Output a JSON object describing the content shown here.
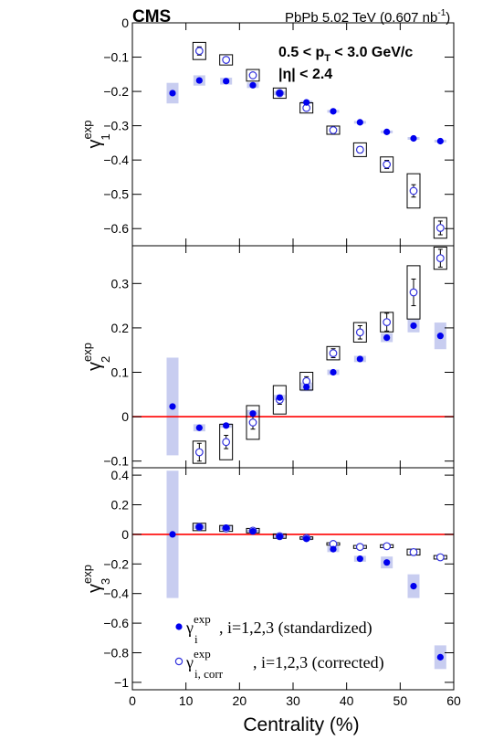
{
  "header": {
    "experiment": "CMS",
    "dataset_prefix": "PbPb 5.02 TeV (0.607 nb",
    "dataset_sup": "-1",
    "dataset_suffix": ")"
  },
  "cuts": {
    "pt_prefix": "0.5 < p",
    "pt_sub": "T",
    "pt_suffix": " < 3.0 GeV/c",
    "eta": "|η| < 2.4"
  },
  "legend": {
    "standardized_sym": "γ",
    "standardized_sup": "exp",
    "standardized_sub": "i",
    "standardized_text": ", i=1,2,3 (standardized)",
    "corrected_sym": "γ",
    "corrected_sup": "exp",
    "corrected_sub": "i, corr",
    "corrected_text": ", i=1,2,3 (corrected)"
  },
  "colors": {
    "standardized_marker": "#0000ee",
    "syst_band": "#c8cdf0",
    "corrected_marker": "#3232dd",
    "zero_line": "#ff0000"
  },
  "chart_data": {
    "type": "scatter",
    "xlabel": "Centrality (%)",
    "xlim": [
      0,
      60
    ],
    "x_ticks": [
      "0",
      "10",
      "20",
      "30",
      "40",
      "50",
      "60"
    ],
    "x": [
      7.5,
      12.5,
      17.5,
      22.5,
      27.5,
      32.5,
      37.5,
      42.5,
      47.5,
      52.5,
      57.5
    ],
    "panels": [
      {
        "ylabel_sym": "γ",
        "ylabel_sup": "exp",
        "ylabel_sub": "1",
        "ylim": [
          -0.65,
          0.0
        ],
        "y_ticks": [
          0,
          -0.1,
          -0.2,
          -0.3,
          -0.4,
          -0.5,
          -0.6
        ],
        "y_tick_labels": [
          "0",
          "−0.1",
          "−0.2",
          "−0.3",
          "−0.4",
          "−0.5",
          "−0.6"
        ],
        "zero_line": false,
        "series": [
          {
            "name": "standardized",
            "x": [
              7.5,
              12.5,
              17.5,
              22.5,
              27.5,
              32.5,
              37.5,
              42.5,
              47.5,
              52.5,
              57.5
            ],
            "values": [
              -0.205,
              -0.168,
              -0.17,
              -0.182,
              -0.205,
              -0.232,
              -0.258,
              -0.29,
              -0.318,
              -0.337,
              -0.345
            ],
            "syst": [
              0.03,
              0.015,
              0.01,
              0.008,
              0.006,
              0.005,
              0.004,
              0.004,
              0.004,
              0.004,
              0.004
            ]
          },
          {
            "name": "corrected",
            "x": [
              12.5,
              17.5,
              22.5,
              27.5,
              32.5,
              37.5,
              42.5,
              47.5,
              52.5,
              57.5
            ],
            "values": [
              -0.082,
              -0.108,
              -0.153,
              -0.205,
              -0.248,
              -0.313,
              -0.37,
              -0.413,
              -0.49,
              -0.598
            ],
            "stat": [
              0.012,
              0.008,
              0.006,
              0.006,
              0.006,
              0.007,
              0.009,
              0.012,
              0.018,
              0.02
            ],
            "syst": [
              0.025,
              0.015,
              0.017,
              0.015,
              0.015,
              0.012,
              0.02,
              0.022,
              0.05,
              0.03
            ]
          }
        ]
      },
      {
        "ylabel_sym": "γ",
        "ylabel_sup": "exp",
        "ylabel_sub": "2",
        "ylim": [
          -0.115,
          0.385
        ],
        "y_ticks": [
          -0.1,
          0,
          0.1,
          0.2,
          0.3
        ],
        "y_tick_labels": [
          "−0.1",
          "0",
          "0.1",
          "0.2",
          "0.3"
        ],
        "zero_line": true,
        "series": [
          {
            "name": "standardized",
            "x": [
              7.5,
              12.5,
              17.5,
              22.5,
              27.5,
              32.5,
              37.5,
              42.5,
              47.5,
              52.5,
              57.5
            ],
            "values": [
              0.023,
              -0.025,
              -0.02,
              0.007,
              0.043,
              0.067,
              0.1,
              0.13,
              0.178,
              0.205,
              0.182
            ],
            "syst": [
              0.11,
              0.008,
              0.005,
              0.008,
              0.006,
              0.01,
              0.006,
              0.007,
              0.01,
              0.015,
              0.03
            ]
          },
          {
            "name": "corrected",
            "x": [
              12.5,
              17.5,
              22.5,
              27.5,
              32.5,
              37.5,
              42.5,
              47.5,
              52.5,
              57.5
            ],
            "values": [
              -0.08,
              -0.057,
              -0.013,
              0.038,
              0.08,
              0.143,
              0.19,
              0.213,
              0.28,
              0.357
            ],
            "stat": [
              0.02,
              0.015,
              0.015,
              0.01,
              0.01,
              0.01,
              0.015,
              0.02,
              0.03,
              0.02
            ],
            "syst": [
              0.025,
              0.04,
              0.038,
              0.032,
              0.02,
              0.015,
              0.022,
              0.022,
              0.06,
              0.025
            ]
          }
        ]
      },
      {
        "ylabel_sym": "γ",
        "ylabel_sup": "exp",
        "ylabel_sub": "3",
        "ylim": [
          -1.05,
          0.45
        ],
        "y_ticks": [
          0.4,
          0.2,
          0,
          -0.2,
          -0.4,
          -0.6,
          -0.8,
          -1.0
        ],
        "y_tick_labels": [
          "0.4",
          "0.2",
          "0",
          "−0.2",
          "−0.4",
          "−0.6",
          "−0.8",
          "−1"
        ],
        "zero_line": true,
        "series": [
          {
            "name": "standardized",
            "x": [
              7.5,
              12.5,
              17.5,
              22.5,
              27.5,
              32.5,
              37.5,
              42.5,
              47.5,
              52.5,
              57.5
            ],
            "values": [
              0.0,
              0.05,
              0.045,
              0.02,
              -0.015,
              -0.03,
              -0.1,
              -0.165,
              -0.19,
              -0.35,
              -0.83
            ],
            "syst": [
              0.43,
              0.015,
              0.015,
              0.012,
              0.012,
              0.01,
              0.02,
              0.02,
              0.04,
              0.08,
              0.08
            ]
          },
          {
            "name": "corrected",
            "x": [
              12.5,
              17.5,
              22.5,
              27.5,
              32.5,
              37.5,
              42.5,
              47.5,
              52.5,
              57.5
            ],
            "values": [
              0.05,
              0.04,
              0.025,
              -0.012,
              -0.025,
              -0.065,
              -0.085,
              -0.08,
              -0.12,
              -0.155
            ],
            "stat": [
              0.008,
              0.008,
              0.008,
              0.008,
              0.008,
              0.01,
              0.01,
              0.012,
              0.015,
              0.01
            ],
            "syst": [
              0.025,
              0.02,
              0.015,
              0.015,
              0.008,
              0.008,
              0.01,
              0.01,
              0.02,
              0.012
            ]
          }
        ]
      }
    ]
  }
}
